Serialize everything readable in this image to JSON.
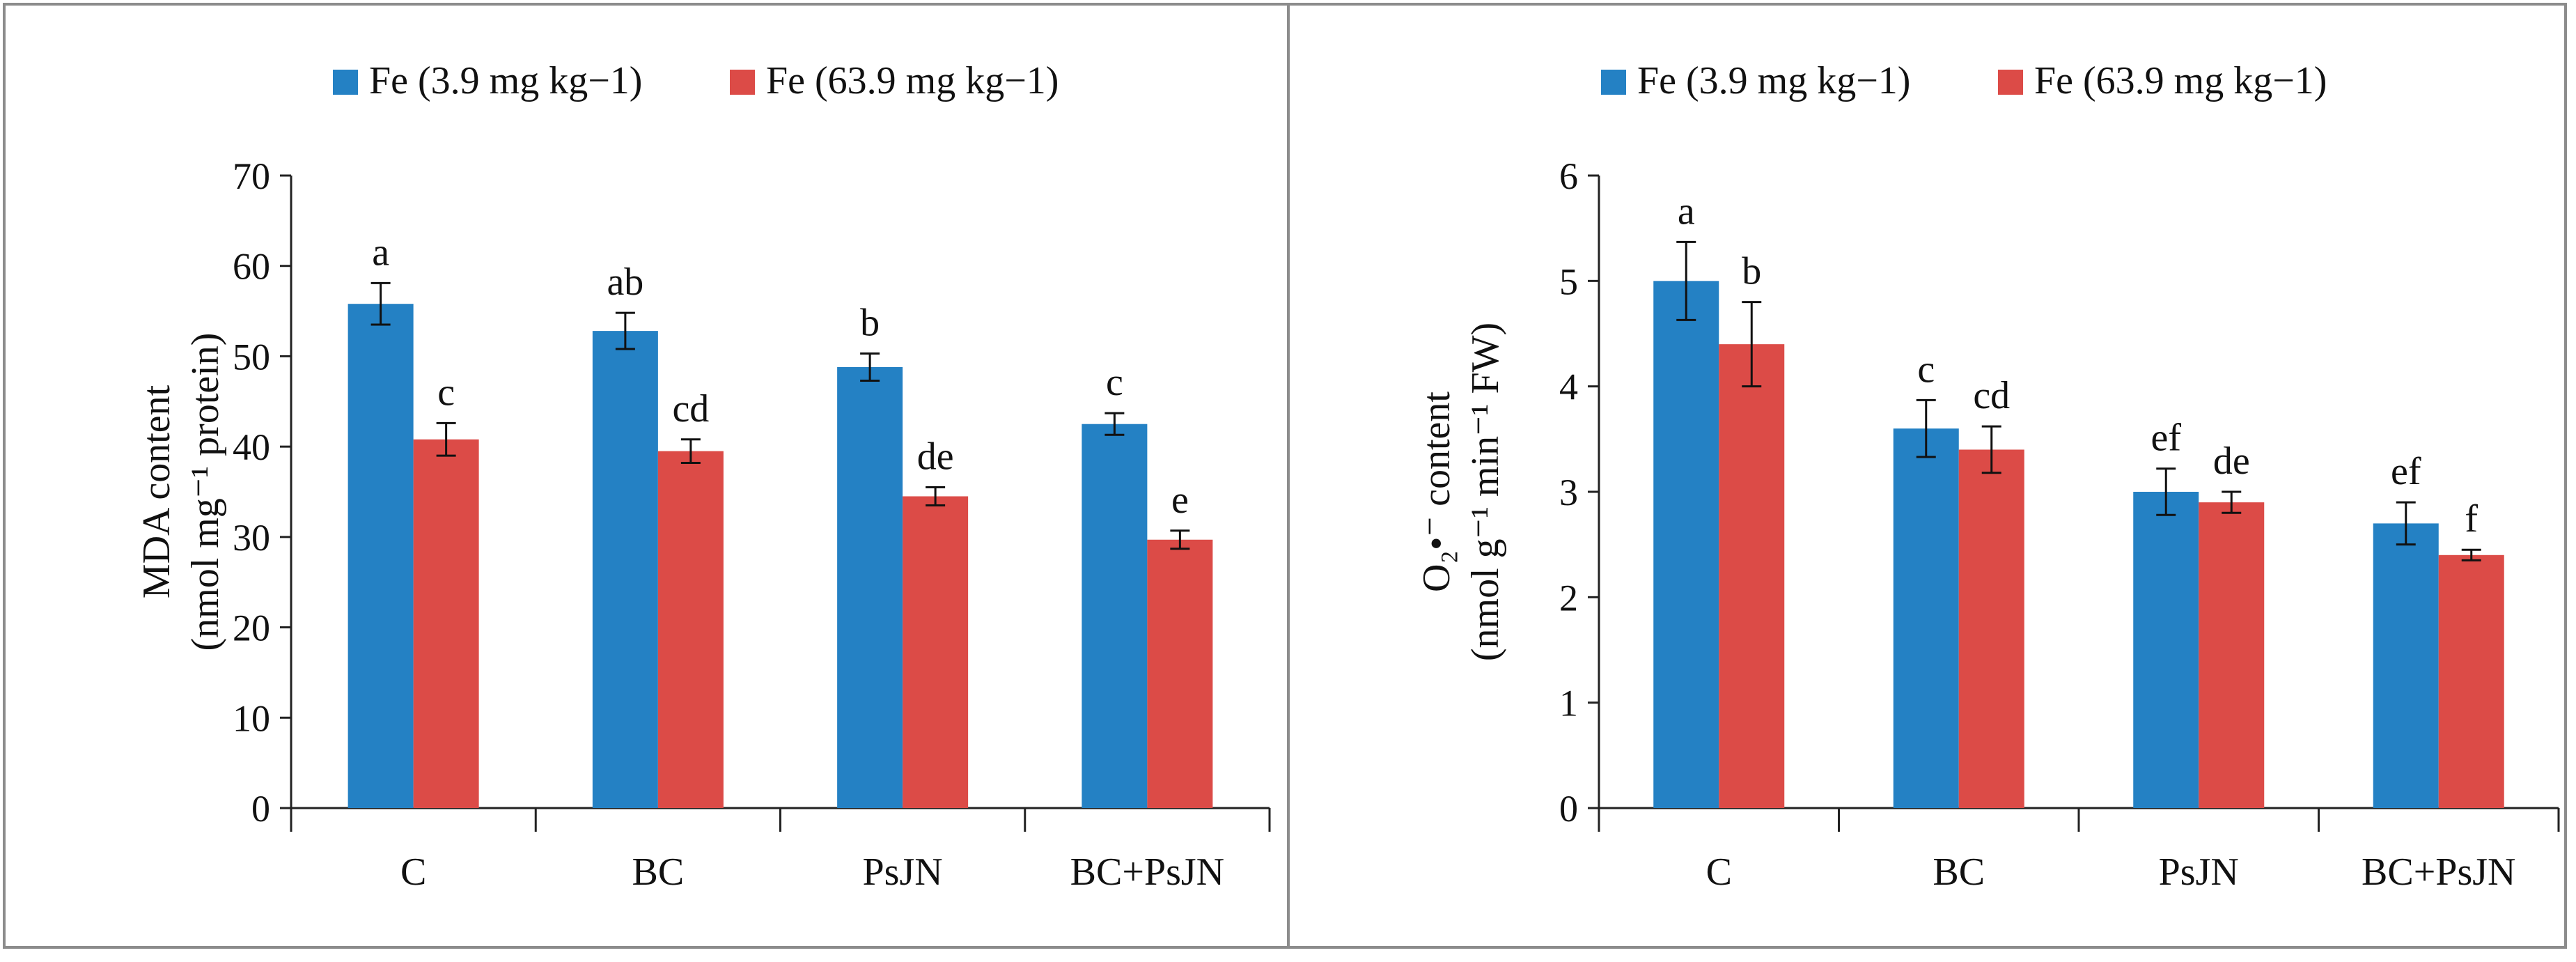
{
  "colors": {
    "series1": "#2481c4",
    "series2": "#dc4b47",
    "axis": "#222222",
    "frame": "#8c8c8c"
  },
  "chart_data": [
    {
      "type": "bar",
      "categories": [
        "C",
        "BC",
        "PsJN",
        "BC+PsJN"
      ],
      "series": [
        {
          "name": "Fe (3.9 mg kg−1)",
          "values": [
            55.8,
            52.8,
            48.8,
            42.5
          ],
          "errors": [
            2.3,
            2.0,
            1.5,
            1.2
          ],
          "letters": [
            "a",
            "ab",
            "b",
            "c"
          ]
        },
        {
          "name": "Fe (63.9 mg kg−1)",
          "values": [
            40.8,
            39.5,
            34.5,
            29.7
          ],
          "errors": [
            1.8,
            1.3,
            1.0,
            1.0
          ],
          "letters": [
            "c",
            "cd",
            "de",
            "e"
          ]
        }
      ],
      "ylim": [
        0,
        70
      ],
      "yticks": [
        0,
        10,
        20,
        30,
        40,
        50,
        60,
        70
      ],
      "ylabel_lines": [
        "MDA content",
        "(nmol mg⁻¹ protein)"
      ],
      "xlabel": "",
      "legend": "top",
      "grid": false
    },
    {
      "type": "bar",
      "categories": [
        "C",
        "BC",
        "PsJN",
        "BC+PsJN"
      ],
      "series": [
        {
          "name": "Fe (3.9 mg kg−1)",
          "values": [
            5.0,
            3.6,
            3.0,
            2.7
          ],
          "errors": [
            0.37,
            0.27,
            0.22,
            0.2
          ],
          "letters": [
            "a",
            "c",
            "ef",
            "ef"
          ]
        },
        {
          "name": "Fe (63.9 mg kg−1)",
          "values": [
            4.4,
            3.4,
            2.9,
            2.4
          ],
          "errors": [
            0.4,
            0.22,
            0.1,
            0.05
          ],
          "letters": [
            "b",
            "cd",
            "de",
            "f"
          ]
        }
      ],
      "ylim": [
        0,
        6
      ],
      "yticks": [
        0,
        1,
        2,
        3,
        4,
        5,
        6
      ],
      "ylabel_lines": [
        "O₂•⁻ content",
        "(nmol g⁻¹ min⁻¹ FW)"
      ],
      "xlabel": "",
      "legend": "top",
      "grid": false
    }
  ]
}
